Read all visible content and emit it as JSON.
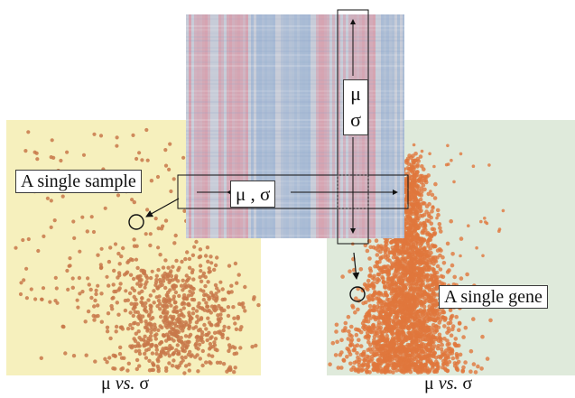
{
  "labels": {
    "single_sample": "A single sample",
    "single_gene": "A single gene",
    "row_stats": "μ , σ",
    "col_mu": "μ",
    "col_sigma": "σ"
  },
  "captions": {
    "left": {
      "mu": "μ",
      "vs": "vs.",
      "sigma": "σ"
    },
    "right": {
      "mu": "μ",
      "vs": "vs.",
      "sigma": "σ"
    }
  },
  "colors": {
    "left_background": "#f6f0bd",
    "right_background": "#dfeadb",
    "left_points": "#c8784a",
    "right_points": "#e0773c",
    "heatmap_red": "#d99aa8",
    "heatmap_blue": "#9fb6d4",
    "heatmap_base": "#c7ccd8"
  }
}
